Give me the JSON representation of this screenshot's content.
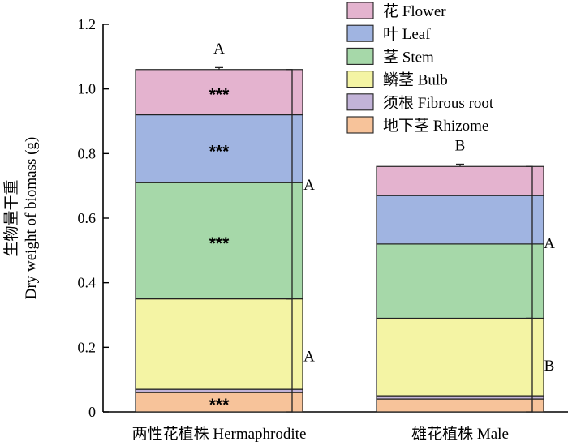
{
  "chart_data": {
    "type": "bar",
    "stacked": true,
    "categories": [
      "两性花植株 Hermaphrodite",
      "雄花植株 Male"
    ],
    "ylabel_cn": "生物量干重",
    "ylabel_en": "Dry weight of biomass (g)",
    "ylim": [
      0,
      1.2
    ],
    "yticks": [
      "0",
      "0.2",
      "0.4",
      "0.6",
      "0.8",
      "1.0",
      "1.2"
    ],
    "series": [
      {
        "name": "地下茎 Rhizome",
        "color": "#f7c39a",
        "values": [
          0.06,
          0.04
        ],
        "error_tops": [
          0.064,
          0.044
        ],
        "sig": [
          "***",
          ""
        ]
      },
      {
        "name": "须根 Fibrous root",
        "color": "#c2b3d8",
        "values": [
          0.01,
          0.01
        ],
        "error_tops": [
          0.071,
          0.053
        ],
        "sig": [
          "",
          ""
        ]
      },
      {
        "name": "鳞茎 Bulb",
        "color": "#f4f4a4",
        "values": [
          0.28,
          0.24
        ],
        "error_tops": [
          0.37,
          0.307
        ],
        "sig": [
          "",
          ""
        ]
      },
      {
        "name": "茎 Stem",
        "color": "#a6d8a9",
        "values": [
          0.36,
          0.23
        ],
        "error_tops": [
          0.73,
          0.532
        ],
        "sig": [
          "***",
          ""
        ]
      },
      {
        "name": "叶 Leaf",
        "color": "#a0b4e1",
        "values": [
          0.21,
          0.15
        ],
        "error_tops": [
          0.932,
          0.682
        ],
        "sig": [
          "***",
          ""
        ]
      },
      {
        "name": "花 Flower",
        "color": "#e4b3cf",
        "values": [
          0.14,
          0.09
        ],
        "error_tops": [
          1.066,
          0.767
        ],
        "sig": [
          "***",
          ""
        ]
      }
    ],
    "top_letters": [
      "A",
      "B"
    ],
    "brackets": [
      {
        "category": 0,
        "from": 0.35,
        "to": 1.06,
        "label": "A"
      },
      {
        "category": 0,
        "from": 0,
        "to": 0.35,
        "label": "A"
      },
      {
        "category": 1,
        "from": 0.29,
        "to": 0.76,
        "label": "A"
      },
      {
        "category": 1,
        "from": 0,
        "to": 0.29,
        "label": "B"
      }
    ],
    "legend_position": "top-right"
  }
}
